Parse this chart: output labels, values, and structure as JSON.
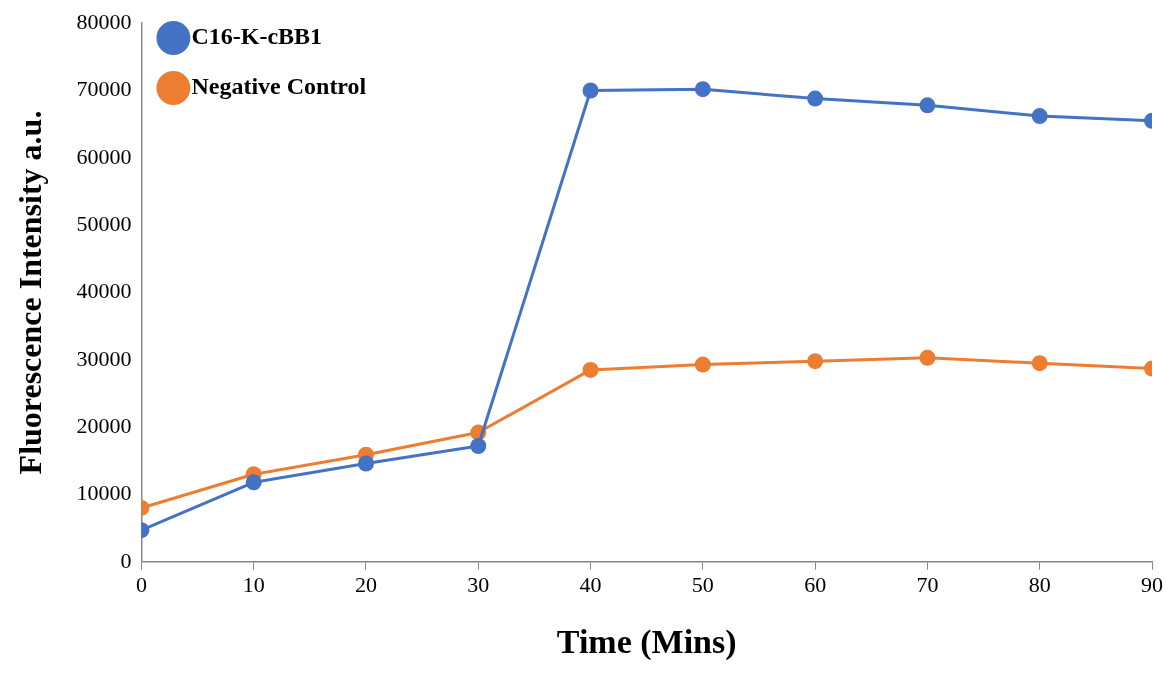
{
  "chart_data": {
    "type": "line",
    "xlabel": "Time (Mins)",
    "ylabel": "Fluorescence Intensity a.u.",
    "x": [
      0,
      10,
      20,
      30,
      40,
      50,
      60,
      70,
      80,
      90
    ],
    "series": [
      {
        "name": "C16-K-cBB1",
        "color": "#4472c4",
        "values": [
          4700,
          11800,
          14600,
          17200,
          70000,
          70200,
          68800,
          67800,
          66200,
          65500
        ]
      },
      {
        "name": "Negative Control",
        "color": "#ed7d31",
        "values": [
          8000,
          13000,
          15900,
          19200,
          28500,
          29300,
          29800,
          30300,
          29500,
          28700
        ]
      }
    ],
    "xlim": [
      0,
      90
    ],
    "xticks": [
      0,
      10,
      20,
      30,
      40,
      50,
      60,
      70,
      80,
      90
    ],
    "ylim": [
      0,
      80000
    ],
    "yticks": [
      0,
      10000,
      20000,
      30000,
      40000,
      50000,
      60000,
      70000,
      80000
    ],
    "grid": false,
    "legend": "top left",
    "marker": "circle",
    "line_style": "solid"
  }
}
